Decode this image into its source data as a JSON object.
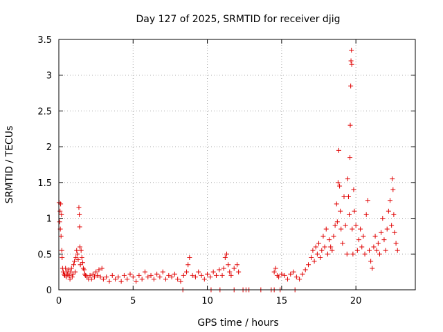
{
  "chart_data": {
    "type": "scatter",
    "title": "Day 127 of 2025, SRMTID for receiver djig",
    "xlabel": "GPS time / hours",
    "ylabel": "SRMTID / TECUs",
    "xlim": [
      0,
      24
    ],
    "ylim": [
      0,
      3.5
    ],
    "x_ticks": [
      0,
      5,
      10,
      15,
      20
    ],
    "x_tick_labels": [
      "0",
      "5",
      "10",
      "15",
      "20"
    ],
    "y_ticks": [
      0,
      0.5,
      1,
      1.5,
      2,
      2.5,
      3,
      3.5
    ],
    "y_tick_labels": [
      "0",
      "0.5",
      "1",
      "1.5",
      "2",
      "2.5",
      "3",
      "3.5"
    ],
    "grid": true,
    "marker": "+",
    "series_color": "#e00000",
    "series": [
      {
        "name": "SRMTID",
        "points": [
          [
            0.02,
            1.22
          ],
          [
            0.05,
            0.95
          ],
          [
            0.08,
            1.1
          ],
          [
            0.1,
            0.85
          ],
          [
            0.12,
            1.2
          ],
          [
            0.15,
            0.75
          ],
          [
            0.18,
            1.05
          ],
          [
            0.2,
            0.55
          ],
          [
            0.22,
            0.45
          ],
          [
            0.25,
            0.3
          ],
          [
            0.3,
            0.25
          ],
          [
            0.35,
            0.22
          ],
          [
            0.4,
            0.2
          ],
          [
            0.45,
            0.3
          ],
          [
            0.5,
            0.18
          ],
          [
            0.55,
            0.25
          ],
          [
            0.6,
            0.22
          ],
          [
            0.65,
            0.28
          ],
          [
            0.7,
            0.2
          ],
          [
            0.75,
            0.15
          ],
          [
            0.8,
            0.25
          ],
          [
            0.85,
            0.3
          ],
          [
            0.9,
            0.18
          ],
          [
            0.95,
            0.22
          ],
          [
            1.0,
            0.35
          ],
          [
            1.05,
            0.4
          ],
          [
            1.1,
            0.25
          ],
          [
            1.15,
            0.45
          ],
          [
            1.2,
            0.55
          ],
          [
            1.25,
            0.5
          ],
          [
            1.3,
            0.42
          ],
          [
            1.35,
            1.15
          ],
          [
            1.38,
            1.05
          ],
          [
            1.4,
            0.88
          ],
          [
            1.42,
            0.6
          ],
          [
            1.45,
            0.35
          ],
          [
            1.5,
            0.55
          ],
          [
            1.55,
            0.45
          ],
          [
            1.6,
            0.38
          ],
          [
            1.65,
            0.3
          ],
          [
            1.7,
            0.28
          ],
          [
            1.75,
            0.22
          ],
          [
            1.8,
            0.2
          ],
          [
            1.9,
            0.18
          ],
          [
            2.0,
            0.15
          ],
          [
            2.1,
            0.2
          ],
          [
            2.2,
            0.15
          ],
          [
            2.3,
            0.22
          ],
          [
            2.4,
            0.18
          ],
          [
            2.5,
            0.25
          ],
          [
            2.6,
            0.2
          ],
          [
            2.7,
            0.28
          ],
          [
            2.8,
            0.18
          ],
          [
            2.9,
            0.3
          ],
          [
            3.0,
            0.15
          ],
          [
            3.2,
            0.18
          ],
          [
            3.4,
            0.12
          ],
          [
            3.6,
            0.2
          ],
          [
            3.8,
            0.15
          ],
          [
            4.0,
            0.18
          ],
          [
            4.2,
            0.12
          ],
          [
            4.4,
            0.2
          ],
          [
            4.6,
            0.15
          ],
          [
            4.8,
            0.22
          ],
          [
            5.0,
            0.18
          ],
          [
            5.2,
            0.12
          ],
          [
            5.4,
            0.2
          ],
          [
            5.6,
            0.15
          ],
          [
            5.8,
            0.25
          ],
          [
            6.0,
            0.18
          ],
          [
            6.2,
            0.2
          ],
          [
            6.4,
            0.15
          ],
          [
            6.6,
            0.22
          ],
          [
            6.8,
            0.18
          ],
          [
            7.0,
            0.25
          ],
          [
            7.2,
            0.15
          ],
          [
            7.4,
            0.2
          ],
          [
            7.6,
            0.18
          ],
          [
            7.8,
            0.22
          ],
          [
            8.0,
            0.15
          ],
          [
            8.2,
            0.12
          ],
          [
            8.4,
            0.2
          ],
          [
            8.6,
            0.25
          ],
          [
            8.7,
            0.35
          ],
          [
            8.8,
            0.45
          ],
          [
            9.0,
            0.2
          ],
          [
            9.2,
            0.18
          ],
          [
            9.4,
            0.25
          ],
          [
            9.6,
            0.2
          ],
          [
            9.8,
            0.15
          ],
          [
            10.0,
            0.22
          ],
          [
            10.2,
            0.18
          ],
          [
            10.4,
            0.25
          ],
          [
            10.6,
            0.2
          ],
          [
            10.8,
            0.28
          ],
          [
            11.0,
            0.2
          ],
          [
            11.1,
            0.3
          ],
          [
            11.2,
            0.45
          ],
          [
            11.3,
            0.5
          ],
          [
            11.4,
            0.35
          ],
          [
            11.5,
            0.25
          ],
          [
            11.6,
            0.2
          ],
          [
            11.8,
            0.3
          ],
          [
            12.0,
            0.35
          ],
          [
            12.1,
            0.25
          ],
          [
            14.5,
            0.25
          ],
          [
            14.6,
            0.3
          ],
          [
            14.7,
            0.2
          ],
          [
            14.8,
            0.18
          ],
          [
            15.0,
            0.22
          ],
          [
            15.2,
            0.2
          ],
          [
            15.4,
            0.15
          ],
          [
            15.6,
            0.22
          ],
          [
            15.8,
            0.25
          ],
          [
            16.0,
            0.18
          ],
          [
            16.2,
            0.15
          ],
          [
            16.4,
            0.22
          ],
          [
            16.6,
            0.28
          ],
          [
            16.8,
            0.35
          ],
          [
            17.0,
            0.45
          ],
          [
            17.1,
            0.55
          ],
          [
            17.2,
            0.4
          ],
          [
            17.3,
            0.6
          ],
          [
            17.4,
            0.5
          ],
          [
            17.5,
            0.65
          ],
          [
            17.6,
            0.45
          ],
          [
            17.7,
            0.55
          ],
          [
            17.8,
            0.75
          ],
          [
            17.9,
            0.6
          ],
          [
            18.0,
            0.85
          ],
          [
            18.1,
            0.5
          ],
          [
            18.2,
            0.7
          ],
          [
            18.3,
            0.6
          ],
          [
            18.4,
            0.55
          ],
          [
            18.5,
            0.75
          ],
          [
            18.6,
            0.9
          ],
          [
            18.7,
            1.2
          ],
          [
            18.75,
            0.95
          ],
          [
            18.8,
            1.5
          ],
          [
            18.85,
            1.95
          ],
          [
            18.9,
            1.45
          ],
          [
            18.95,
            1.1
          ],
          [
            19.0,
            0.85
          ],
          [
            19.1,
            0.65
          ],
          [
            19.2,
            1.3
          ],
          [
            19.3,
            0.9
          ],
          [
            19.4,
            0.5
          ],
          [
            19.45,
            1.55
          ],
          [
            19.5,
            1.3
          ],
          [
            19.55,
            1.05
          ],
          [
            19.6,
            1.85
          ],
          [
            19.62,
            2.3
          ],
          [
            19.65,
            2.85
          ],
          [
            19.67,
            3.2
          ],
          [
            19.7,
            3.35
          ],
          [
            19.72,
            3.15
          ],
          [
            19.75,
            0.85
          ],
          [
            19.8,
            0.5
          ],
          [
            19.85,
            1.4
          ],
          [
            19.9,
            1.1
          ],
          [
            20.0,
            0.9
          ],
          [
            20.1,
            0.55
          ],
          [
            20.2,
            0.7
          ],
          [
            20.3,
            0.85
          ],
          [
            20.4,
            0.6
          ],
          [
            20.5,
            0.75
          ],
          [
            20.6,
            0.5
          ],
          [
            20.7,
            1.05
          ],
          [
            20.8,
            1.25
          ],
          [
            20.9,
            0.55
          ],
          [
            21.0,
            0.4
          ],
          [
            21.1,
            0.3
          ],
          [
            21.2,
            0.6
          ],
          [
            21.3,
            0.75
          ],
          [
            21.4,
            0.55
          ],
          [
            21.5,
            0.65
          ],
          [
            21.6,
            0.5
          ],
          [
            21.7,
            0.8
          ],
          [
            21.8,
            1.0
          ],
          [
            21.9,
            0.7
          ],
          [
            22.0,
            0.55
          ],
          [
            22.1,
            0.85
          ],
          [
            22.2,
            1.1
          ],
          [
            22.3,
            1.25
          ],
          [
            22.4,
            0.9
          ],
          [
            22.45,
            1.55
          ],
          [
            22.5,
            1.4
          ],
          [
            22.55,
            1.05
          ],
          [
            22.6,
            0.8
          ],
          [
            22.7,
            0.65
          ],
          [
            22.8,
            0.55
          ]
        ],
        "zero_points": [
          8.35,
          10.25,
          10.85,
          11.8,
          12.4,
          12.6,
          12.8,
          13.6,
          14.3,
          14.5,
          14.9,
          15.9
        ]
      }
    ]
  }
}
